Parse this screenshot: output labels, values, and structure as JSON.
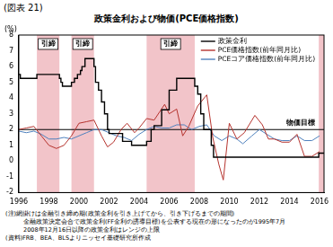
{
  "chart_data": {
    "type": "line",
    "figure_label": "(図表 21)",
    "title": "政策金利および物価(PCE価格指数)",
    "y_label": "(%)",
    "xlim": [
      1996,
      2016.3
    ],
    "xticks": [
      1996,
      1998,
      2000,
      2002,
      2004,
      2006,
      2008,
      2010,
      2012,
      2014,
      2016
    ],
    "ylim": [
      -2,
      8
    ],
    "yticks": [
      -2,
      -1,
      0,
      1,
      2,
      3,
      4,
      5,
      6,
      7,
      8
    ],
    "grid": false,
    "legend": "top-right",
    "shaded_periods": [
      {
        "start": 1997.2,
        "end": 1998.7,
        "label": "引締"
      },
      {
        "start": 1999.5,
        "end": 2001.0,
        "label": "引締"
      },
      {
        "start": 2004.5,
        "end": 2007.7,
        "label": "引締"
      },
      {
        "start": 2015.95,
        "end": 2016.3
      }
    ],
    "annotations": [
      {
        "y": 2,
        "label": "物価目標"
      }
    ],
    "shade_color": "#f2c4c9",
    "series": [
      {
        "name": "政策金利",
        "color": "#000000",
        "line_style": "stepped",
        "x": [
          1996.0,
          1996.1,
          1997.2,
          1998.7,
          1998.8,
          1998.9,
          1999.5,
          1999.7,
          1999.9,
          2000.1,
          2000.2,
          2000.4,
          2001.0,
          2001.1,
          2001.3,
          2001.5,
          2001.7,
          2001.9,
          2002.0,
          2002.9,
          2003.5,
          2004.5,
          2004.8,
          2005.0,
          2005.5,
          2006.0,
          2006.5,
          2007.7,
          2007.9,
          2008.1,
          2008.3,
          2008.8,
          2008.95,
          2015.95,
          2016.3
        ],
        "values": [
          5.5,
          5.25,
          5.5,
          5.25,
          5.0,
          4.75,
          5.0,
          5.25,
          5.5,
          5.75,
          6.0,
          6.5,
          6.0,
          5.0,
          4.5,
          3.75,
          3.0,
          2.0,
          1.75,
          1.25,
          1.0,
          1.25,
          2.0,
          2.25,
          3.25,
          4.5,
          5.25,
          4.75,
          4.25,
          3.0,
          2.0,
          1.0,
          0.25,
          0.5,
          0.5
        ]
      },
      {
        "name": "PCE価格指数(前年同月比)",
        "color": "#b5332e",
        "line_style": "solid",
        "x": [
          1996.0,
          1996.5,
          1997.0,
          1997.5,
          1998.0,
          1998.5,
          1999.0,
          1999.5,
          2000.0,
          2000.5,
          2001.0,
          2001.5,
          2001.9,
          2002.3,
          2002.8,
          2003.2,
          2003.7,
          2004.0,
          2004.5,
          2005.0,
          2005.7,
          2006.0,
          2006.5,
          2006.9,
          2007.3,
          2007.9,
          2008.5,
          2008.9,
          2009.3,
          2009.6,
          2010.0,
          2010.5,
          2011.0,
          2011.7,
          2012.2,
          2012.6,
          2013.0,
          2013.5,
          2014.0,
          2014.5,
          2015.0,
          2015.5,
          2016.0
        ],
        "values": [
          2.0,
          2.1,
          2.2,
          1.6,
          1.0,
          0.8,
          1.0,
          1.6,
          2.4,
          2.5,
          2.6,
          1.6,
          0.9,
          1.2,
          2.0,
          2.4,
          1.8,
          2.1,
          2.7,
          2.6,
          3.6,
          3.0,
          3.3,
          1.6,
          2.2,
          3.5,
          4.2,
          1.5,
          -0.2,
          -1.2,
          2.4,
          1.4,
          1.8,
          2.9,
          2.3,
          1.4,
          1.4,
          1.2,
          1.2,
          1.7,
          0.3,
          0.3,
          0.6
        ]
      },
      {
        "name": "PCEコア価格指数(前年同月比)",
        "color": "#4f81bd",
        "line_style": "solid",
        "x": [
          1996.0,
          1996.5,
          1997.0,
          1997.5,
          1998.0,
          1998.5,
          1999.0,
          1999.5,
          2000.0,
          2000.5,
          2001.0,
          2001.5,
          2002.0,
          2002.5,
          2003.0,
          2003.5,
          2004.0,
          2004.5,
          2005.0,
          2005.5,
          2006.0,
          2006.5,
          2007.0,
          2007.5,
          2008.0,
          2008.5,
          2009.0,
          2009.5,
          2010.0,
          2010.5,
          2010.9,
          2011.5,
          2012.0,
          2012.5,
          2013.0,
          2013.5,
          2014.0,
          2014.5,
          2015.0,
          2015.5,
          2016.0
        ],
        "values": [
          1.9,
          1.8,
          1.9,
          1.7,
          1.4,
          1.4,
          1.5,
          1.4,
          1.6,
          1.8,
          2.0,
          2.0,
          1.8,
          1.6,
          1.5,
          1.3,
          1.7,
          2.0,
          2.2,
          2.1,
          2.1,
          2.3,
          2.3,
          2.0,
          2.2,
          2.3,
          1.6,
          1.3,
          1.6,
          1.4,
          1.1,
          1.6,
          2.0,
          1.7,
          1.4,
          1.3,
          1.3,
          1.6,
          1.3,
          1.3,
          1.6
        ]
      }
    ],
    "notes": [
      "(注)網掛けは金融引き締め期(政策金利を引き上げてから、引き下げるまでの期間)",
      "金融政策決定会合で政策金利(FF金利の誘導目標)を公表する現在の形になったのが1995年7月",
      "2008年12月16日以降の政策金利はレンジの上限",
      "(資料)FRB、BEA、BLSよりニッセイ基礎研究所作成"
    ]
  }
}
